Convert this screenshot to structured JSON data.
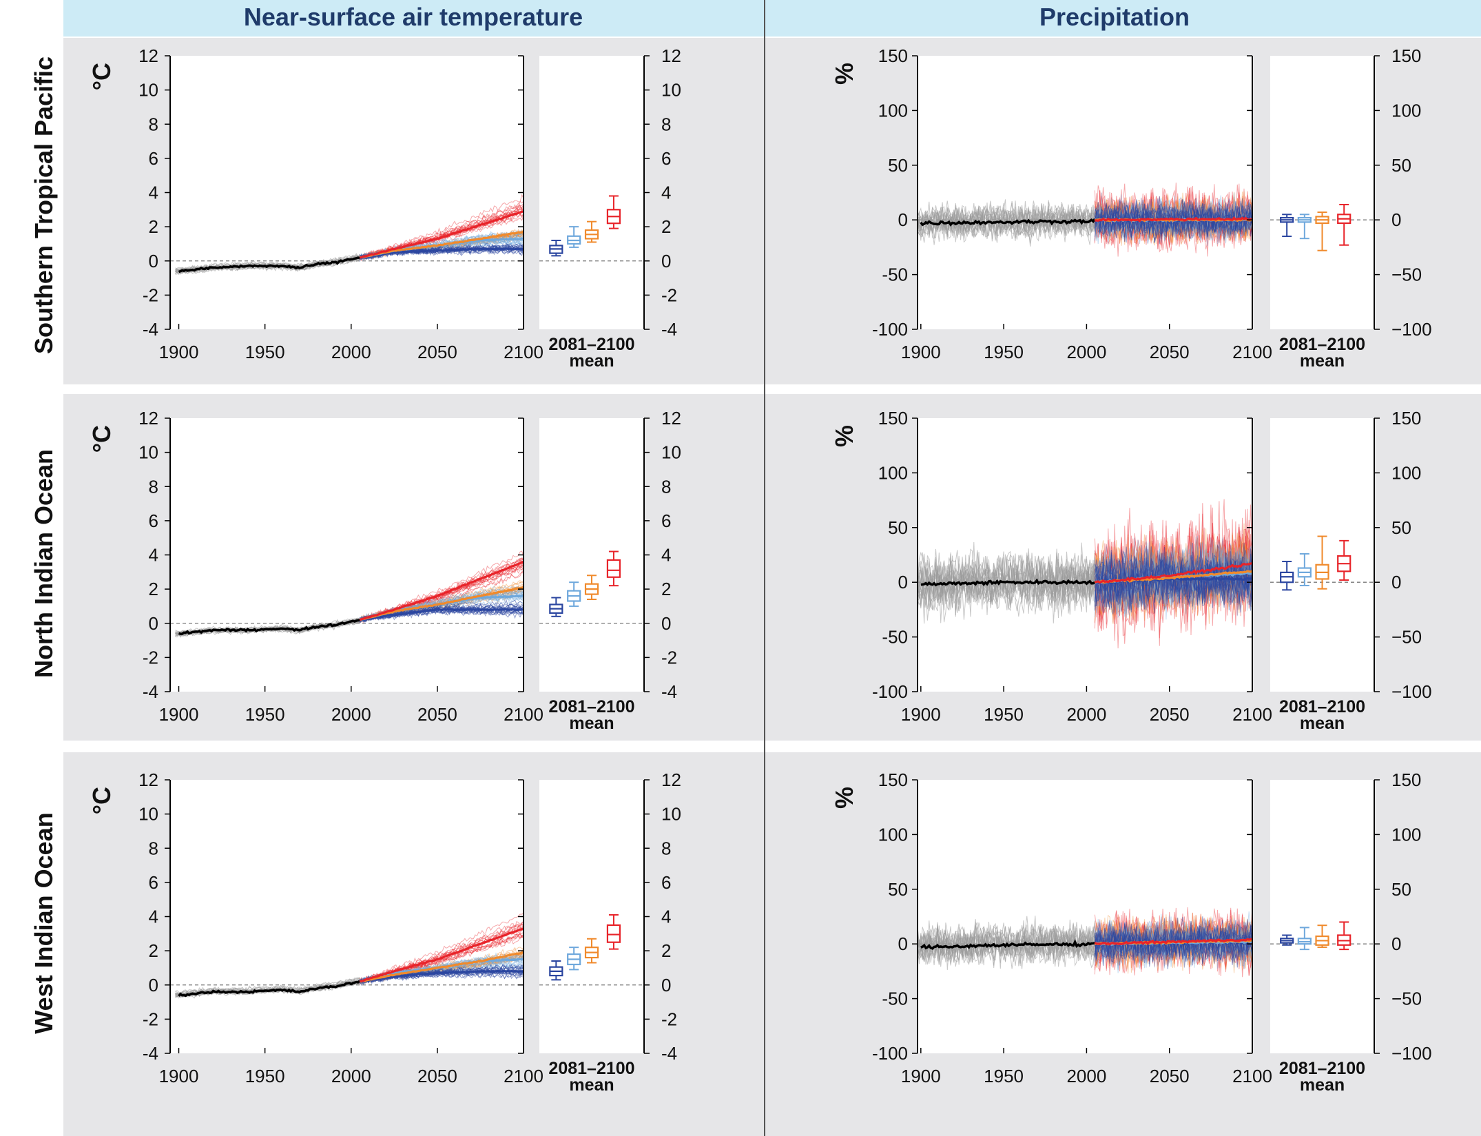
{
  "headers": {
    "temperature": "Near-surface air temperature",
    "precipitation": "Precipitation"
  },
  "colors": {
    "header_bg": "#cdebf6",
    "panel_bg": "#e6e6e8",
    "historical": "#000000",
    "historical_ensemble": "#9a9a9a",
    "rcp26": "#2b46a0",
    "rcp45": "#6fa8dc",
    "rcp60": "#f08a2c",
    "rcp85": "#e8242a"
  },
  "box_axis_label_line1": "2081–2100",
  "box_axis_label_line2": "mean",
  "chart_data": [
    {
      "type": "line",
      "region": "Southern Tropical Pacific",
      "variable": "Near-surface air temperature",
      "ylabel": "°C",
      "ylim": [
        -4,
        12
      ],
      "yticks": [
        -4,
        -2,
        0,
        2,
        4,
        6,
        8,
        10,
        12
      ],
      "xlim": [
        1895,
        2100
      ],
      "xticks": [
        1900,
        1950,
        2000,
        2050,
        2100
      ],
      "series": [
        {
          "key": "historical",
          "x": [
            1900,
            1920,
            1940,
            1960,
            1970,
            1980,
            1990,
            2000,
            2005
          ],
          "values": [
            -0.6,
            -0.4,
            -0.3,
            -0.3,
            -0.4,
            -0.2,
            -0.1,
            0.1,
            0.2
          ]
        },
        {
          "key": "rcp26",
          "x": [
            2005,
            2025,
            2050,
            2075,
            2100
          ],
          "values": [
            0.2,
            0.5,
            0.6,
            0.7,
            0.7
          ]
        },
        {
          "key": "rcp45",
          "x": [
            2005,
            2025,
            2050,
            2075,
            2100
          ],
          "values": [
            0.2,
            0.6,
            0.9,
            1.2,
            1.3
          ]
        },
        {
          "key": "rcp60",
          "x": [
            2005,
            2025,
            2050,
            2075,
            2100
          ],
          "values": [
            0.2,
            0.6,
            0.9,
            1.3,
            1.7
          ]
        },
        {
          "key": "rcp85",
          "x": [
            2005,
            2025,
            2050,
            2075,
            2100
          ],
          "values": [
            0.2,
            0.7,
            1.3,
            2.1,
            2.9
          ]
        }
      ],
      "spread": {
        "hist": 0.3,
        "rcp26": 0.5,
        "rcp45": 0.7,
        "rcp60": 0.7,
        "rcp85": 1.3
      },
      "boxes": [
        {
          "key": "rcp26",
          "q1": 0.45,
          "median": 0.7,
          "q3": 0.9,
          "min": 0.3,
          "max": 1.2
        },
        {
          "key": "rcp45",
          "q1": 1.0,
          "median": 1.2,
          "q3": 1.45,
          "min": 0.8,
          "max": 2.0
        },
        {
          "key": "rcp60",
          "q1": 1.3,
          "median": 1.55,
          "q3": 1.8,
          "min": 1.1,
          "max": 2.3
        },
        {
          "key": "rcp85",
          "q1": 2.2,
          "median": 2.6,
          "q3": 3.0,
          "min": 1.9,
          "max": 3.8
        }
      ]
    },
    {
      "type": "line",
      "region": "Southern Tropical Pacific",
      "variable": "Precipitation",
      "ylabel": "%",
      "ylim": [
        -100,
        150
      ],
      "yticks": [
        -100,
        -50,
        0,
        50,
        100,
        150
      ],
      "ytick_labels": [
        "-100",
        "-50",
        "0",
        "50",
        "100",
        "150"
      ],
      "box_ytick_labels": [
        "−100",
        "−50",
        "0",
        "50",
        "100",
        "150"
      ],
      "xlim": [
        1898,
        2100
      ],
      "xticks": [
        1900,
        1950,
        2000,
        2050,
        2100
      ],
      "series": [
        {
          "key": "historical",
          "x": [
            1900,
            1950,
            2005
          ],
          "values": [
            -3,
            -2,
            -1
          ]
        },
        {
          "key": "rcp26",
          "x": [
            2005,
            2100
          ],
          "values": [
            0,
            0
          ]
        },
        {
          "key": "rcp45",
          "x": [
            2005,
            2100
          ],
          "values": [
            0,
            0
          ]
        },
        {
          "key": "rcp60",
          "x": [
            2005,
            2100
          ],
          "values": [
            0,
            0
          ]
        },
        {
          "key": "rcp85",
          "x": [
            2005,
            2100
          ],
          "values": [
            0,
            1
          ]
        }
      ],
      "spread": {
        "hist": 12,
        "rcp26": 14,
        "rcp45": 15,
        "rcp60": 17,
        "rcp85": 22
      },
      "boxes": [
        {
          "key": "rcp26",
          "q1": -2,
          "median": 0,
          "q3": 2,
          "min": -15,
          "max": 5
        },
        {
          "key": "rcp45",
          "q1": -2,
          "median": 0,
          "q3": 2,
          "min": -17,
          "max": 5
        },
        {
          "key": "rcp60",
          "q1": -3,
          "median": 0,
          "q3": 3,
          "min": -28,
          "max": 7
        },
        {
          "key": "rcp85",
          "q1": -3,
          "median": 1,
          "q3": 5,
          "min": -23,
          "max": 14
        }
      ]
    },
    {
      "type": "line",
      "region": "North Indian Ocean",
      "variable": "Near-surface air temperature",
      "ylabel": "°C",
      "ylim": [
        -4,
        12
      ],
      "yticks": [
        -4,
        -2,
        0,
        2,
        4,
        6,
        8,
        10,
        12
      ],
      "xlim": [
        1895,
        2100
      ],
      "xticks": [
        1900,
        1950,
        2000,
        2050,
        2100
      ],
      "series": [
        {
          "key": "historical",
          "x": [
            1900,
            1920,
            1940,
            1960,
            1970,
            1980,
            1990,
            2000,
            2005
          ],
          "values": [
            -0.6,
            -0.4,
            -0.4,
            -0.3,
            -0.4,
            -0.2,
            -0.1,
            0.1,
            0.2
          ]
        },
        {
          "key": "rcp26",
          "x": [
            2005,
            2025,
            2050,
            2075,
            2100
          ],
          "values": [
            0.2,
            0.5,
            0.8,
            0.8,
            0.8
          ]
        },
        {
          "key": "rcp45",
          "x": [
            2005,
            2025,
            2050,
            2075,
            2100
          ],
          "values": [
            0.2,
            0.7,
            1.1,
            1.5,
            1.6
          ]
        },
        {
          "key": "rcp60",
          "x": [
            2005,
            2025,
            2050,
            2075,
            2100
          ],
          "values": [
            0.2,
            0.7,
            1.1,
            1.6,
            2.1
          ]
        },
        {
          "key": "rcp85",
          "x": [
            2005,
            2025,
            2050,
            2075,
            2100
          ],
          "values": [
            0.2,
            0.8,
            1.6,
            2.6,
            3.6
          ]
        }
      ],
      "spread": {
        "hist": 0.3,
        "rcp26": 0.6,
        "rcp45": 0.8,
        "rcp60": 0.8,
        "rcp85": 1.3
      },
      "boxes": [
        {
          "key": "rcp26",
          "q1": 0.6,
          "median": 0.85,
          "q3": 1.1,
          "min": 0.4,
          "max": 1.5
        },
        {
          "key": "rcp45",
          "q1": 1.3,
          "median": 1.6,
          "q3": 1.9,
          "min": 1.0,
          "max": 2.4
        },
        {
          "key": "rcp60",
          "q1": 1.7,
          "median": 2.0,
          "q3": 2.3,
          "min": 1.4,
          "max": 2.8
        },
        {
          "key": "rcp85",
          "q1": 2.7,
          "median": 3.1,
          "q3": 3.7,
          "min": 2.2,
          "max": 4.2
        }
      ]
    },
    {
      "type": "line",
      "region": "North Indian Ocean",
      "variable": "Precipitation",
      "ylabel": "%",
      "ylim": [
        -100,
        150
      ],
      "yticks": [
        -100,
        -50,
        0,
        50,
        100,
        150
      ],
      "ytick_labels": [
        "-100",
        "-50",
        "0",
        "50",
        "100",
        "150"
      ],
      "box_ytick_labels": [
        "−100",
        "−50",
        "0",
        "50",
        "100",
        "150"
      ],
      "xlim": [
        1898,
        2100
      ],
      "xticks": [
        1900,
        1950,
        2000,
        2050,
        2100
      ],
      "series": [
        {
          "key": "historical",
          "x": [
            1900,
            1950,
            2005
          ],
          "values": [
            -2,
            0,
            0
          ]
        },
        {
          "key": "rcp26",
          "x": [
            2005,
            2050,
            2100
          ],
          "values": [
            0,
            3,
            3
          ]
        },
        {
          "key": "rcp45",
          "x": [
            2005,
            2050,
            2100
          ],
          "values": [
            0,
            5,
            8
          ]
        },
        {
          "key": "rcp60",
          "x": [
            2005,
            2050,
            2100
          ],
          "values": [
            0,
            4,
            10
          ]
        },
        {
          "key": "rcp85",
          "x": [
            2005,
            2050,
            2100
          ],
          "values": [
            0,
            6,
            17
          ]
        }
      ],
      "spread": {
        "hist": 20,
        "rcp26": 22,
        "rcp45": 25,
        "rcp60": 28,
        "rcp85": 40
      },
      "boxes": [
        {
          "key": "rcp26",
          "q1": 0,
          "median": 5,
          "q3": 9,
          "min": -7,
          "max": 19
        },
        {
          "key": "rcp45",
          "q1": 5,
          "median": 9,
          "q3": 13,
          "min": -3,
          "max": 26
        },
        {
          "key": "rcp60",
          "q1": 3,
          "median": 9,
          "q3": 16,
          "min": -6,
          "max": 42
        },
        {
          "key": "rcp85",
          "q1": 10,
          "median": 17,
          "q3": 24,
          "min": 2,
          "max": 38
        }
      ]
    },
    {
      "type": "line",
      "region": "West Indian Ocean",
      "variable": "Near-surface air temperature",
      "ylabel": "°C",
      "ylim": [
        -4,
        12
      ],
      "yticks": [
        -4,
        -2,
        0,
        2,
        4,
        6,
        8,
        10,
        12
      ],
      "xlim": [
        1895,
        2100
      ],
      "xticks": [
        1900,
        1950,
        2000,
        2050,
        2100
      ],
      "series": [
        {
          "key": "historical",
          "x": [
            1900,
            1920,
            1940,
            1960,
            1970,
            1980,
            1990,
            2000,
            2005
          ],
          "values": [
            -0.6,
            -0.4,
            -0.4,
            -0.3,
            -0.4,
            -0.2,
            -0.1,
            0.1,
            0.2
          ]
        },
        {
          "key": "rcp26",
          "x": [
            2005,
            2025,
            2050,
            2075,
            2100
          ],
          "values": [
            0.2,
            0.5,
            0.7,
            0.8,
            0.8
          ]
        },
        {
          "key": "rcp45",
          "x": [
            2005,
            2025,
            2050,
            2075,
            2100
          ],
          "values": [
            0.2,
            0.7,
            1.0,
            1.4,
            1.5
          ]
        },
        {
          "key": "rcp60",
          "x": [
            2005,
            2025,
            2050,
            2075,
            2100
          ],
          "values": [
            0.2,
            0.6,
            1.0,
            1.4,
            1.9
          ]
        },
        {
          "key": "rcp85",
          "x": [
            2005,
            2025,
            2050,
            2075,
            2100
          ],
          "values": [
            0.2,
            0.8,
            1.5,
            2.4,
            3.3
          ]
        }
      ],
      "spread": {
        "hist": 0.3,
        "rcp26": 0.6,
        "rcp45": 0.8,
        "rcp60": 0.8,
        "rcp85": 1.3
      },
      "boxes": [
        {
          "key": "rcp26",
          "q1": 0.55,
          "median": 0.8,
          "q3": 1.05,
          "min": 0.3,
          "max": 1.4
        },
        {
          "key": "rcp45",
          "q1": 1.2,
          "median": 1.5,
          "q3": 1.8,
          "min": 0.9,
          "max": 2.2
        },
        {
          "key": "rcp60",
          "q1": 1.6,
          "median": 1.9,
          "q3": 2.2,
          "min": 1.3,
          "max": 2.7
        },
        {
          "key": "rcp85",
          "q1": 2.5,
          "median": 2.95,
          "q3": 3.5,
          "min": 2.1,
          "max": 4.1
        }
      ]
    },
    {
      "type": "line",
      "region": "West Indian Ocean",
      "variable": "Precipitation",
      "ylabel": "%",
      "ylim": [
        -100,
        150
      ],
      "yticks": [
        -100,
        -50,
        0,
        50,
        100,
        150
      ],
      "ytick_labels": [
        "-100",
        "-50",
        "0",
        "50",
        "100",
        "150"
      ],
      "box_ytick_labels": [
        "−100",
        "−50",
        "0",
        "50",
        "100",
        "150"
      ],
      "xlim": [
        1898,
        2100
      ],
      "xticks": [
        1900,
        1950,
        2000,
        2050,
        2100
      ],
      "series": [
        {
          "key": "historical",
          "x": [
            1900,
            1950,
            2005
          ],
          "values": [
            -3,
            -1,
            0
          ]
        },
        {
          "key": "rcp26",
          "x": [
            2005,
            2100
          ],
          "values": [
            0,
            2
          ]
        },
        {
          "key": "rcp45",
          "x": [
            2005,
            2100
          ],
          "values": [
            0,
            2
          ]
        },
        {
          "key": "rcp60",
          "x": [
            2005,
            2100
          ],
          "values": [
            0,
            3
          ]
        },
        {
          "key": "rcp85",
          "x": [
            2005,
            2100
          ],
          "values": [
            0,
            4
          ]
        }
      ],
      "spread": {
        "hist": 14,
        "rcp26": 15,
        "rcp45": 17,
        "rcp60": 18,
        "rcp85": 22
      },
      "boxes": [
        {
          "key": "rcp26",
          "q1": 1,
          "median": 3,
          "q3": 5,
          "min": -1,
          "max": 8
        },
        {
          "key": "rcp45",
          "q1": 0,
          "median": 2,
          "q3": 5,
          "min": -5,
          "max": 15
        },
        {
          "key": "rcp60",
          "q1": -1,
          "median": 3,
          "q3": 7,
          "min": -3,
          "max": 17
        },
        {
          "key": "rcp85",
          "q1": -1,
          "median": 3,
          "q3": 8,
          "min": -5,
          "max": 20
        }
      ]
    }
  ]
}
